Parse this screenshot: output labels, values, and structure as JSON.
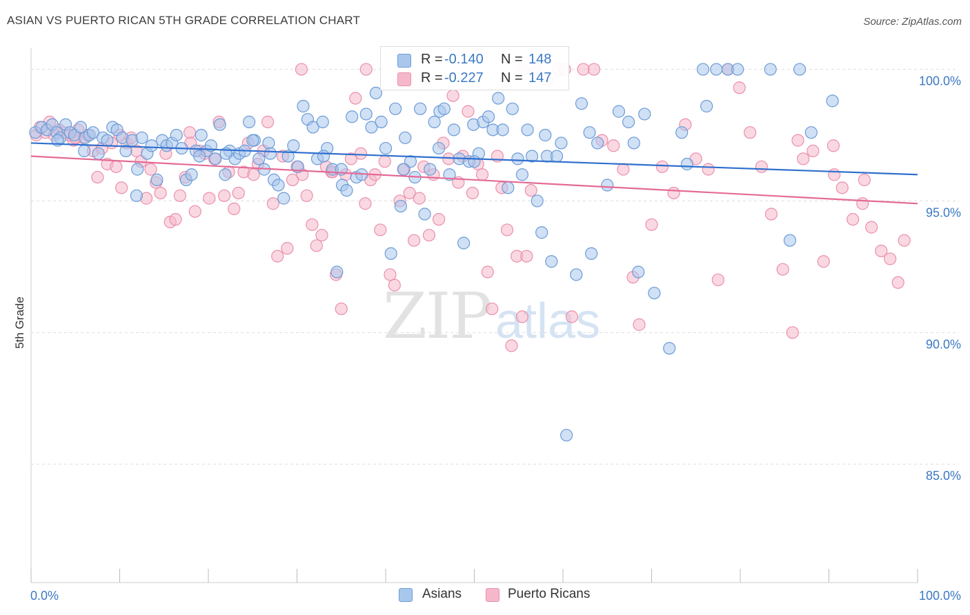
{
  "title": "ASIAN VS PUERTO RICAN 5TH GRADE CORRELATION CHART",
  "source": "Source: ZipAtlas.com",
  "watermark": {
    "zip": "ZIP",
    "atlas": "atlas"
  },
  "legend": {
    "rows": [
      {
        "r_label": "R =",
        "r_value": "-0.140",
        "n_label": "N =",
        "n_value": "148"
      },
      {
        "r_label": "R =",
        "r_value": "-0.227",
        "n_label": "N =",
        "n_value": "147"
      }
    ]
  },
  "bottom_legend": {
    "asians": "Asians",
    "puerto_ricans": "Puerto Ricans"
  },
  "colors": {
    "asian_fill": "#a9c7ec",
    "asian_stroke": "#6b9bd6",
    "asian_line": "#2f6fce",
    "pr_fill": "#f5b8cb",
    "pr_stroke": "#ea8fab",
    "pr_line": "#e46a95",
    "tick_label": "#3b78c4",
    "grid": "#dddddd"
  },
  "chart_data": {
    "type": "scatter",
    "title": "ASIAN VS PUERTO RICAN 5TH GRADE CORRELATION CHART",
    "ylabel": "5th Grade",
    "xlabel": "",
    "xlim": [
      0,
      100
    ],
    "ylim": [
      80.5,
      100.8
    ],
    "x_tick_labels": [
      "0.0%",
      "100.0%"
    ],
    "y_ticks": [
      100,
      95,
      90,
      85
    ],
    "y_tick_labels": [
      "100.0%",
      "95.0%",
      "90.0%",
      "85.0%"
    ],
    "grid": true,
    "legend_position": "top-center",
    "series": [
      {
        "name": "Asians",
        "r": -0.14,
        "n": 148,
        "trend": {
          "x": [
            0,
            100
          ],
          "y": [
            97.2,
            96.0
          ]
        },
        "points": [
          [
            0.5,
            97.6
          ],
          [
            1.2,
            97.8
          ],
          [
            1.8,
            97.7
          ],
          [
            2.4,
            97.9
          ],
          [
            2.9,
            97.6
          ],
          [
            3.3,
            97.4
          ],
          [
            3.9,
            97.9
          ],
          [
            4.4,
            97.6
          ],
          [
            4.9,
            97.5
          ],
          [
            5.6,
            97.8
          ],
          [
            6.1,
            97.4
          ],
          [
            6.6,
            97.5
          ],
          [
            7.0,
            97.6
          ],
          [
            7.6,
            96.8
          ],
          [
            8.1,
            97.4
          ],
          [
            8.6,
            97.3
          ],
          [
            9.2,
            97.8
          ],
          [
            9.7,
            97.7
          ],
          [
            10.3,
            97.4
          ],
          [
            10.7,
            96.9
          ],
          [
            11.4,
            97.3
          ],
          [
            11.9,
            95.2
          ],
          [
            12.5,
            97.4
          ],
          [
            13.1,
            96.8
          ],
          [
            13.6,
            97.1
          ],
          [
            14.2,
            95.8
          ],
          [
            14.8,
            97.3
          ],
          [
            15.3,
            97.1
          ],
          [
            15.9,
            97.2
          ],
          [
            16.4,
            97.5
          ],
          [
            17.0,
            97.0
          ],
          [
            17.5,
            95.8
          ],
          [
            18.1,
            96.0
          ],
          [
            18.6,
            96.9
          ],
          [
            19.2,
            97.5
          ],
          [
            19.8,
            96.9
          ],
          [
            20.3,
            97.1
          ],
          [
            20.8,
            96.6
          ],
          [
            21.3,
            97.9
          ],
          [
            21.9,
            96.0
          ],
          [
            22.4,
            96.9
          ],
          [
            23.0,
            96.6
          ],
          [
            23.5,
            96.8
          ],
          [
            24.1,
            96.9
          ],
          [
            24.6,
            98.0
          ],
          [
            25.2,
            97.3
          ],
          [
            25.7,
            96.6
          ],
          [
            26.3,
            96.2
          ],
          [
            26.8,
            97.2
          ],
          [
            27.4,
            95.8
          ],
          [
            27.9,
            95.6
          ],
          [
            28.5,
            95.1
          ],
          [
            29.0,
            96.7
          ],
          [
            29.6,
            97.1
          ],
          [
            30.1,
            96.3
          ],
          [
            30.7,
            98.6
          ],
          [
            31.2,
            98.1
          ],
          [
            31.8,
            97.8
          ],
          [
            32.3,
            96.6
          ],
          [
            32.9,
            98.0
          ],
          [
            33.4,
            97.0
          ],
          [
            34.0,
            96.2
          ],
          [
            34.5,
            92.3
          ],
          [
            35.1,
            95.6
          ],
          [
            35.6,
            95.4
          ],
          [
            36.2,
            98.2
          ],
          [
            36.7,
            95.9
          ],
          [
            37.3,
            96.0
          ],
          [
            37.8,
            98.3
          ],
          [
            38.4,
            97.8
          ],
          [
            38.9,
            99.1
          ],
          [
            39.5,
            98.0
          ],
          [
            40.0,
            97.0
          ],
          [
            40.6,
            93.0
          ],
          [
            41.1,
            98.5
          ],
          [
            41.7,
            94.8
          ],
          [
            42.2,
            97.4
          ],
          [
            42.8,
            96.5
          ],
          [
            43.3,
            95.9
          ],
          [
            43.9,
            98.5
          ],
          [
            44.4,
            94.5
          ],
          [
            45.0,
            96.2
          ],
          [
            45.5,
            98.0
          ],
          [
            46.1,
            98.4
          ],
          [
            46.6,
            98.5
          ],
          [
            47.2,
            96.0
          ],
          [
            47.7,
            97.7
          ],
          [
            48.3,
            96.6
          ],
          [
            48.8,
            93.4
          ],
          [
            49.4,
            96.5
          ],
          [
            49.9,
            97.9
          ],
          [
            50.5,
            96.8
          ],
          [
            51.0,
            98.0
          ],
          [
            51.6,
            98.2
          ],
          [
            52.1,
            97.7
          ],
          [
            52.7,
            98.9
          ],
          [
            53.2,
            97.7
          ],
          [
            53.8,
            95.5
          ],
          [
            54.3,
            98.5
          ],
          [
            54.9,
            96.6
          ],
          [
            55.4,
            96.0
          ],
          [
            56.0,
            97.7
          ],
          [
            56.5,
            96.7
          ],
          [
            57.1,
            95.0
          ],
          [
            57.6,
            93.8
          ],
          [
            58.2,
            96.7
          ],
          [
            58.7,
            92.7
          ],
          [
            59.3,
            96.7
          ],
          [
            59.8,
            97.2
          ],
          [
            60.4,
            86.1
          ],
          [
            61.5,
            92.2
          ],
          [
            62.1,
            98.7
          ],
          [
            63.2,
            93.0
          ],
          [
            63.9,
            97.2
          ],
          [
            65.0,
            95.6
          ],
          [
            66.3,
            98.4
          ],
          [
            67.4,
            98.0
          ],
          [
            68.5,
            92.3
          ],
          [
            69.2,
            98.3
          ],
          [
            70.3,
            91.5
          ],
          [
            72.0,
            89.4
          ],
          [
            73.4,
            97.6
          ],
          [
            76.2,
            98.6
          ],
          [
            75.8,
            100.0
          ],
          [
            77.3,
            100.0
          ],
          [
            78.6,
            100.0
          ],
          [
            79.7,
            100.0
          ],
          [
            83.4,
            100.0
          ],
          [
            85.6,
            93.5
          ],
          [
            88.0,
            97.6
          ],
          [
            90.4,
            98.8
          ],
          [
            86.7,
            100.0
          ],
          [
            63.0,
            97.6
          ],
          [
            27.0,
            96.8
          ],
          [
            12.0,
            96.2
          ],
          [
            6.0,
            96.9
          ],
          [
            3.0,
            97.3
          ],
          [
            50.0,
            96.5
          ],
          [
            42.0,
            96.2
          ],
          [
            35.0,
            96.2
          ],
          [
            19.0,
            96.7
          ],
          [
            22.0,
            96.8
          ],
          [
            25.0,
            97.3
          ],
          [
            33.0,
            96.7
          ],
          [
            46.0,
            97.0
          ],
          [
            58.0,
            97.5
          ],
          [
            68.0,
            97.2
          ],
          [
            74.0,
            96.4
          ]
        ]
      },
      {
        "name": "Puerto Ricans",
        "r": -0.227,
        "n": 147,
        "trend": {
          "x": [
            0,
            100
          ],
          "y": [
            96.7,
            94.9
          ]
        },
        "points": [
          [
            0.6,
            97.5
          ],
          [
            1.0,
            97.8
          ],
          [
            1.6,
            97.6
          ],
          [
            2.1,
            98.0
          ],
          [
            2.6,
            97.5
          ],
          [
            3.2,
            97.7
          ],
          [
            3.7,
            97.6
          ],
          [
            4.3,
            97.5
          ],
          [
            4.8,
            97.3
          ],
          [
            5.3,
            97.7
          ],
          [
            5.9,
            97.4
          ],
          [
            6.4,
            97.5
          ],
          [
            7.0,
            96.9
          ],
          [
            7.5,
            95.9
          ],
          [
            8.0,
            97.0
          ],
          [
            8.6,
            96.4
          ],
          [
            9.1,
            97.2
          ],
          [
            9.6,
            96.3
          ],
          [
            10.2,
            95.5
          ],
          [
            10.8,
            97.2
          ],
          [
            11.3,
            97.4
          ],
          [
            11.9,
            96.9
          ],
          [
            12.4,
            96.5
          ],
          [
            13.0,
            95.1
          ],
          [
            13.5,
            96.2
          ],
          [
            14.1,
            95.7
          ],
          [
            14.6,
            95.3
          ],
          [
            15.2,
            96.8
          ],
          [
            15.7,
            94.2
          ],
          [
            16.3,
            94.3
          ],
          [
            16.8,
            95.2
          ],
          [
            17.4,
            95.9
          ],
          [
            17.9,
            97.6
          ],
          [
            18.5,
            94.6
          ],
          [
            19.0,
            96.9
          ],
          [
            19.6,
            96.8
          ],
          [
            20.1,
            95.1
          ],
          [
            20.7,
            96.6
          ],
          [
            21.2,
            98.0
          ],
          [
            21.8,
            95.2
          ],
          [
            22.3,
            96.1
          ],
          [
            22.9,
            94.7
          ],
          [
            23.4,
            95.3
          ],
          [
            24.0,
            96.1
          ],
          [
            24.5,
            97.2
          ],
          [
            25.1,
            96.0
          ],
          [
            25.6,
            96.4
          ],
          [
            26.2,
            96.9
          ],
          [
            26.7,
            98.0
          ],
          [
            27.3,
            94.9
          ],
          [
            27.8,
            92.9
          ],
          [
            28.4,
            96.7
          ],
          [
            28.9,
            93.2
          ],
          [
            29.5,
            95.8
          ],
          [
            30.0,
            96.3
          ],
          [
            30.6,
            96.0
          ],
          [
            31.1,
            95.2
          ],
          [
            31.7,
            94.1
          ],
          [
            32.2,
            93.3
          ],
          [
            32.8,
            93.7
          ],
          [
            33.3,
            96.3
          ],
          [
            33.9,
            96.1
          ],
          [
            34.4,
            92.2
          ],
          [
            35.0,
            90.9
          ],
          [
            35.5,
            96.0
          ],
          [
            36.1,
            96.6
          ],
          [
            36.6,
            98.9
          ],
          [
            37.2,
            96.8
          ],
          [
            37.7,
            94.9
          ],
          [
            38.3,
            95.8
          ],
          [
            38.8,
            96.0
          ],
          [
            39.4,
            93.9
          ],
          [
            39.9,
            96.5
          ],
          [
            40.5,
            92.2
          ],
          [
            41.0,
            91.8
          ],
          [
            41.6,
            95.0
          ],
          [
            42.1,
            96.2
          ],
          [
            42.7,
            95.3
          ],
          [
            43.2,
            93.5
          ],
          [
            43.8,
            95.1
          ],
          [
            44.3,
            96.3
          ],
          [
            44.9,
            93.7
          ],
          [
            45.4,
            96.0
          ],
          [
            46.0,
            94.3
          ],
          [
            46.5,
            97.2
          ],
          [
            47.1,
            96.6
          ],
          [
            47.6,
            99.0
          ],
          [
            48.2,
            95.7
          ],
          [
            48.7,
            96.7
          ],
          [
            49.3,
            98.4
          ],
          [
            49.8,
            95.3
          ],
          [
            50.4,
            96.4
          ],
          [
            50.9,
            96.0
          ],
          [
            51.5,
            92.3
          ],
          [
            52.0,
            90.9
          ],
          [
            52.6,
            96.7
          ],
          [
            53.1,
            95.5
          ],
          [
            53.7,
            93.9
          ],
          [
            54.2,
            89.5
          ],
          [
            54.8,
            92.9
          ],
          [
            55.4,
            90.6
          ],
          [
            55.9,
            92.9
          ],
          [
            56.4,
            95.4
          ],
          [
            57.0,
            100.0
          ],
          [
            58.2,
            99.6
          ],
          [
            59.5,
            100.0
          ],
          [
            61.0,
            90.6
          ],
          [
            62.3,
            100.0
          ],
          [
            63.5,
            100.0
          ],
          [
            64.4,
            97.3
          ],
          [
            65.7,
            97.1
          ],
          [
            66.8,
            96.2
          ],
          [
            67.9,
            92.1
          ],
          [
            68.6,
            90.3
          ],
          [
            70.0,
            94.1
          ],
          [
            71.2,
            96.3
          ],
          [
            72.5,
            95.3
          ],
          [
            73.8,
            97.9
          ],
          [
            75.0,
            96.6
          ],
          [
            76.4,
            96.2
          ],
          [
            77.5,
            92.0
          ],
          [
            78.6,
            100.0
          ],
          [
            79.9,
            99.3
          ],
          [
            81.1,
            97.6
          ],
          [
            82.4,
            96.3
          ],
          [
            83.5,
            94.5
          ],
          [
            84.8,
            92.4
          ],
          [
            85.9,
            90.0
          ],
          [
            87.1,
            96.6
          ],
          [
            88.2,
            96.9
          ],
          [
            89.4,
            92.7
          ],
          [
            90.6,
            96.0
          ],
          [
            91.5,
            95.5
          ],
          [
            92.7,
            94.3
          ],
          [
            93.8,
            94.9
          ],
          [
            94.8,
            94.0
          ],
          [
            95.9,
            93.1
          ],
          [
            96.9,
            92.8
          ],
          [
            97.8,
            91.9
          ],
          [
            98.5,
            93.5
          ],
          [
            30.5,
            100.0
          ],
          [
            37.8,
            100.0
          ],
          [
            55.5,
            100.0
          ],
          [
            60.2,
            100.0
          ],
          [
            5.0,
            97.4
          ],
          [
            10.0,
            97.5
          ],
          [
            18.0,
            97.2
          ],
          [
            34.0,
            96.1
          ],
          [
            86.5,
            97.3
          ],
          [
            90.5,
            97.1
          ],
          [
            94.0,
            95.8
          ]
        ]
      }
    ]
  }
}
